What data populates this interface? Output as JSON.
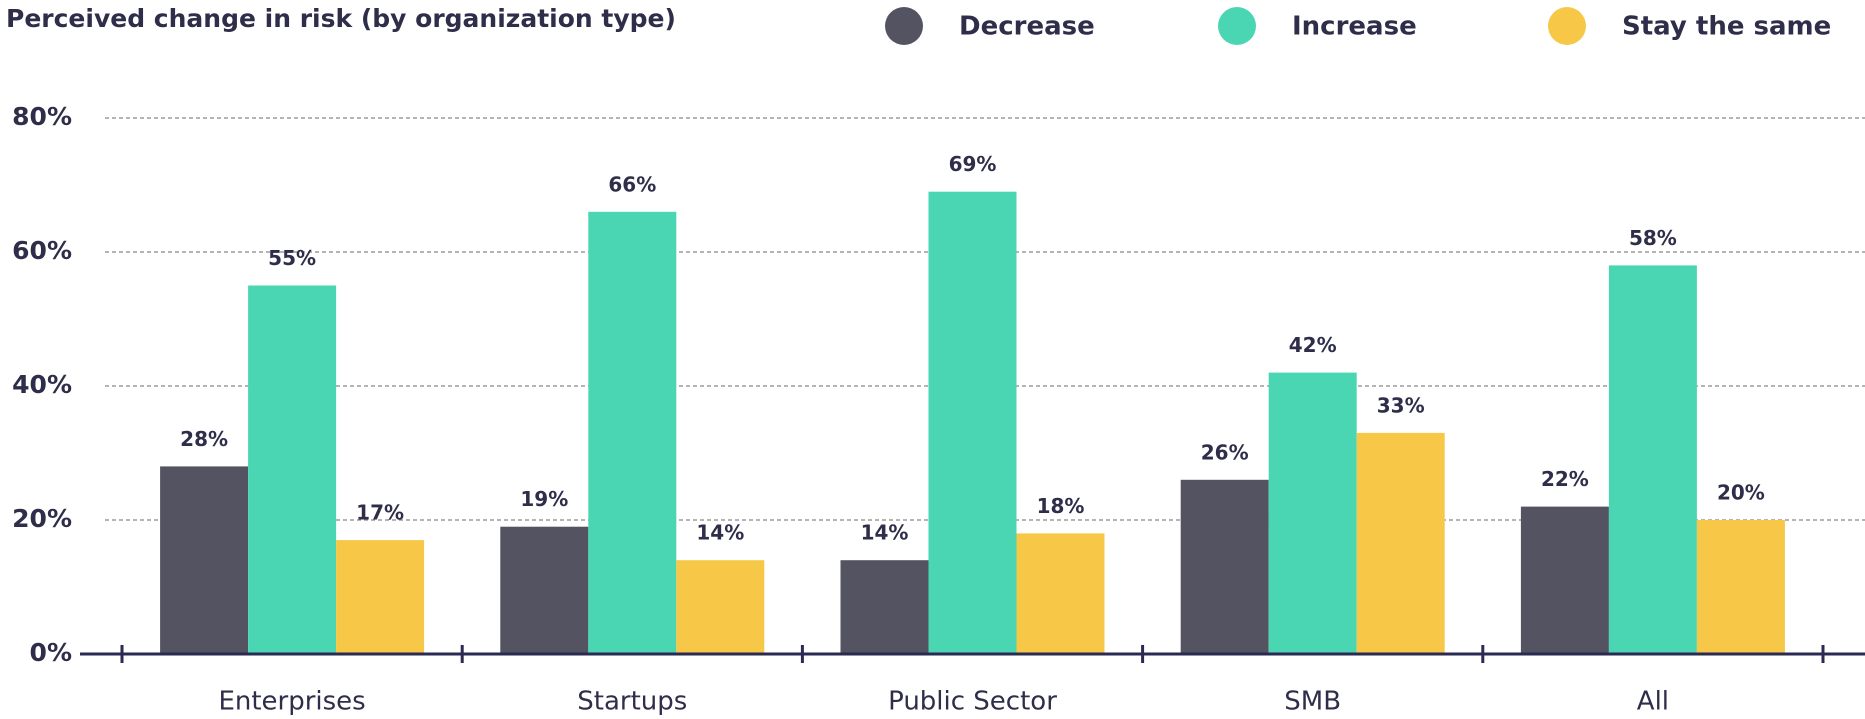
{
  "chart_data": {
    "type": "bar",
    "title": "Perceived change in risk (by organization type)",
    "categories": [
      "Enterprises",
      "Startups",
      "Public Sector",
      "SMB",
      "All"
    ],
    "series": [
      {
        "name": "Decrease",
        "color": "#545361",
        "values": [
          28,
          19,
          14,
          26,
          22
        ],
        "value_labels": [
          "28%",
          "19%",
          "14%",
          "26%",
          "22%"
        ]
      },
      {
        "name": "Increase",
        "color": "#4bd6b3",
        "values": [
          55,
          66,
          69,
          42,
          58
        ],
        "value_labels": [
          "55%",
          "66%",
          "69%",
          "42%",
          "58%"
        ]
      },
      {
        "name": "Stay the same",
        "color": "#f7c748",
        "values": [
          17,
          14,
          18,
          33,
          20
        ],
        "value_labels": [
          "17%",
          "14%",
          "18%",
          "33%",
          "20%"
        ]
      }
    ],
    "ylim": [
      0,
      80
    ],
    "yticks": [
      {
        "value": 0,
        "label": "0%"
      },
      {
        "value": 20,
        "label": "20%"
      },
      {
        "value": 40,
        "label": "40%"
      },
      {
        "value": 60,
        "label": "60%"
      },
      {
        "value": 80,
        "label": "80%"
      }
    ],
    "grid": true,
    "legend": "top"
  }
}
